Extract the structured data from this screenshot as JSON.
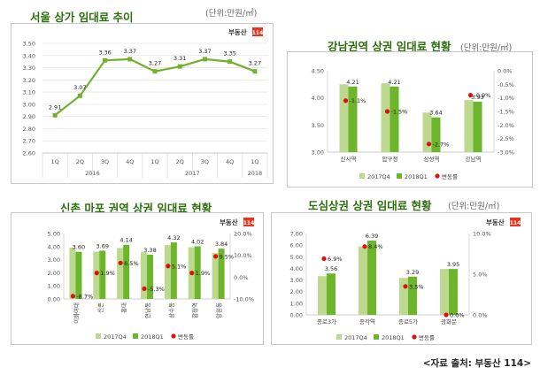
{
  "source_text": "<자료 출처: 부동산 114>",
  "logo_text": "부동산",
  "logo_badge": "114",
  "colors": {
    "title": "#2d6f0d",
    "bar_q4": "#bcd98f",
    "bar_q1": "#6db52b",
    "line": "#74b02e",
    "dot": "#e01010",
    "axis": "#bdbdbd",
    "logo_red": "#e8351f"
  },
  "chart_data": [
    {
      "type": "line",
      "title": "서울 상가 임대료 추이",
      "unit": "(단위:만원/㎡)",
      "categories": [
        "1Q",
        "2Q",
        "3Q",
        "4Q",
        "1Q",
        "2Q",
        "3Q",
        "4Q",
        "1Q"
      ],
      "groups": [
        "2016",
        "2017",
        "2018"
      ],
      "values": [
        2.91,
        3.07,
        3.36,
        3.37,
        3.27,
        3.31,
        3.37,
        3.35,
        3.27
      ],
      "ylim": [
        2.6,
        3.5
      ],
      "yticks": [
        "2.60",
        "2.70",
        "2.80",
        "2.90",
        "3.00",
        "3.10",
        "3.20",
        "3.30",
        "3.40",
        "3.50"
      ],
      "grid": true
    },
    {
      "type": "bar",
      "title": "강남권역 상권 임대료 현황",
      "unit": "(단위:만원/㎡)",
      "categories": [
        "신사역",
        "압구정",
        "삼성역",
        "강남역"
      ],
      "series": [
        {
          "name": "2017Q4",
          "values": [
            4.25,
            4.27,
            3.73,
            3.96
          ]
        },
        {
          "name": "2018Q1",
          "values": [
            4.21,
            4.21,
            3.64,
            3.93
          ]
        }
      ],
      "bar_labels": [
        "4.21",
        "4.21",
        "3.64",
        "3.93"
      ],
      "change_name": "변동률",
      "change_values": [
        -1.1,
        -1.5,
        -2.7,
        -0.9
      ],
      "change_labels": [
        "-1.1%",
        "-1.5%",
        "-2.7%",
        "-0.9%"
      ],
      "ylim": [
        3.0,
        4.5
      ],
      "yticks": [
        "3.00",
        "3.50",
        "4.00",
        "4.50"
      ],
      "y2lim": [
        -3.0,
        0
      ],
      "y2ticks": [
        "-3.0%",
        "-2.5%",
        "-2.0%",
        "-1.5%",
        "-1.0%",
        "-0.5%",
        "0.0%"
      ],
      "legend": "bottom"
    },
    {
      "type": "bar",
      "title": "신촌 마포 권역 상권 임대료 현황",
      "unit": "(단위:만원/㎡)",
      "categories": [
        "이화여대",
        "신촌",
        "홍대",
        "연남동",
        "상수동",
        "합정역",
        "망원동"
      ],
      "series": [
        {
          "name": "2017Q4",
          "values": [
            3.93,
            3.62,
            3.89,
            3.57,
            4.11,
            3.95,
            3.5
          ]
        },
        {
          "name": "2018Q1",
          "values": [
            3.6,
            3.69,
            4.14,
            3.38,
            4.32,
            4.02,
            3.84
          ]
        }
      ],
      "bar_labels": [
        "3.60",
        "3.69",
        "4.14",
        "3.38",
        "4.32",
        "4.02",
        "3.84"
      ],
      "change_name": "변동률",
      "change_values": [
        -8.7,
        1.9,
        6.5,
        -5.3,
        5.1,
        1.9,
        9.5
      ],
      "change_labels": [
        "-8.7%",
        "1.9%",
        "6.5%",
        "-5.3%",
        "5.1%",
        "1.9%",
        "9.5%"
      ],
      "ylim": [
        0,
        5
      ],
      "yticks": [
        "0.00",
        "1.00",
        "2.00",
        "3.00",
        "4.00",
        "5.00"
      ],
      "y2lim": [
        -10,
        20
      ],
      "y2ticks": [
        "-10.0%",
        "0.0%",
        "10.0%",
        "20.0%"
      ],
      "legend": "bottom"
    },
    {
      "type": "bar",
      "title": "도심상권 상권 임대료 현황",
      "unit": "(단위:만원/㎡)",
      "categories": [
        "종로3가",
        "종각역",
        "종로5가",
        "광화문"
      ],
      "series": [
        {
          "name": "2017Q4",
          "values": [
            3.33,
            5.89,
            3.18,
            3.95
          ]
        },
        {
          "name": "2018Q1",
          "values": [
            3.56,
            6.39,
            3.29,
            3.95
          ]
        }
      ],
      "bar_labels": [
        "3.56",
        "6.39",
        "3.29",
        "3.95"
      ],
      "change_name": "변동률",
      "change_values": [
        6.9,
        8.4,
        3.5,
        0.0
      ],
      "change_labels": [
        "6.9%",
        "8.4%",
        "3.5%",
        "0.0%"
      ],
      "ylim": [
        0,
        7
      ],
      "yticks": [
        "0.00",
        "1.00",
        "2.00",
        "3.00",
        "4.00",
        "5.00",
        "6.00",
        "7.00"
      ],
      "y2lim": [
        0,
        10
      ],
      "y2ticks": [
        "0.0%",
        "5.0%",
        "10.0%"
      ],
      "legend": "bottom"
    }
  ]
}
